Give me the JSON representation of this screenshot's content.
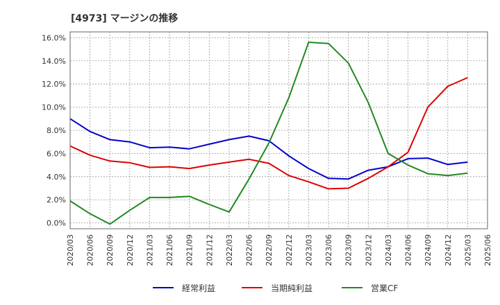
{
  "chart_data": {
    "type": "line",
    "title": "[4973]  マージンの推移",
    "xlabel": "",
    "ylabel": "",
    "ylim": [
      -0.5,
      16.5
    ],
    "y_ticks": [
      "0.0%",
      "2.0%",
      "4.0%",
      "6.0%",
      "8.0%",
      "10.0%",
      "12.0%",
      "14.0%",
      "16.0%"
    ],
    "y_tick_values": [
      0,
      2,
      4,
      6,
      8,
      10,
      12,
      14,
      16
    ],
    "x_ticks": [
      "2020/03",
      "2020/06",
      "2020/09",
      "2020/12",
      "2021/03",
      "2021/06",
      "2021/09",
      "2021/12",
      "2022/03",
      "2022/06",
      "2022/09",
      "2022/12",
      "2023/03",
      "2023/06",
      "2023/09",
      "2023/12",
      "2024/03",
      "2024/06",
      "2024/09",
      "2024/12",
      "2025/03",
      "2025/06"
    ],
    "grid": true,
    "legend_position": "bottom",
    "series": [
      {
        "name": "経常利益",
        "color": "#0000cc",
        "values": [
          9.0,
          7.9,
          7.2,
          7.0,
          6.5,
          6.55,
          6.4,
          6.8,
          7.2,
          7.5,
          7.1,
          5.8,
          4.7,
          3.85,
          3.8,
          4.55,
          4.85,
          5.55,
          5.6,
          5.05,
          5.25
        ]
      },
      {
        "name": "当期純利益",
        "color": "#dd0000",
        "values": [
          6.65,
          5.85,
          5.35,
          5.2,
          4.8,
          4.85,
          4.7,
          5.0,
          5.25,
          5.5,
          5.15,
          4.1,
          3.55,
          2.95,
          3.0,
          3.85,
          4.85,
          6.1,
          10.0,
          11.8,
          12.55
        ]
      },
      {
        "name": "営業CF",
        "color": "#228822",
        "values": [
          1.9,
          0.8,
          -0.1,
          1.1,
          2.2,
          2.2,
          2.3,
          1.6,
          0.95,
          3.8,
          6.9,
          10.8,
          15.6,
          15.5,
          13.8,
          10.4,
          6.0,
          5.0,
          4.25,
          4.1,
          4.3
        ]
      }
    ]
  }
}
